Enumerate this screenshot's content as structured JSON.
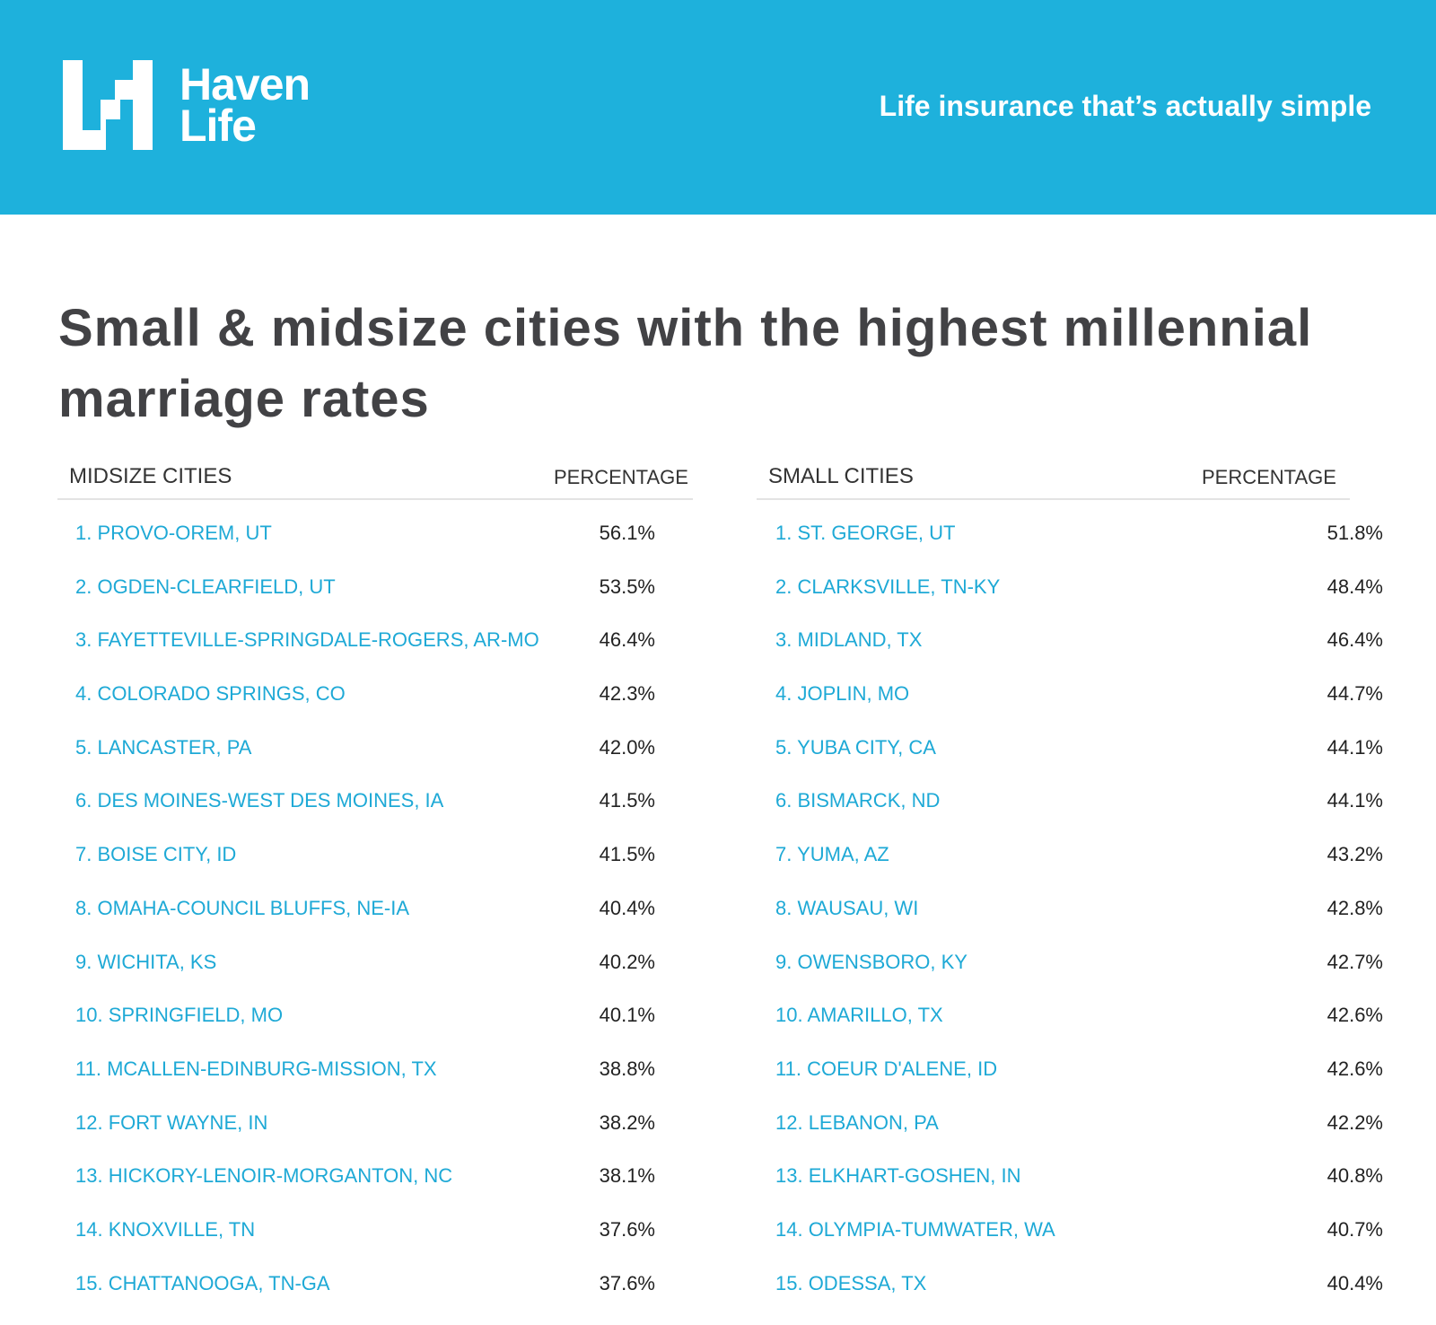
{
  "header": {
    "logo_line1": "Haven",
    "logo_line2": "Life",
    "tagline": "Life insurance that’s actually simple",
    "background_color": "#1eb1dc"
  },
  "title": "Small & midsize cities with the highest millennial marriage rates",
  "tables": {
    "midsize": {
      "heading": "MIDSIZE CITIES",
      "pct_heading": "PERCENTAGE",
      "rows": [
        {
          "city": "1. PROVO-OREM, UT",
          "pct": "56.1%"
        },
        {
          "city": "2. OGDEN-CLEARFIELD, UT",
          "pct": "53.5%"
        },
        {
          "city": "3. FAYETTEVILLE-SPRINGDALE-ROGERS, AR-MO",
          "pct": "46.4%"
        },
        {
          "city": "4. COLORADO SPRINGS, CO",
          "pct": "42.3%"
        },
        {
          "city": "5. LANCASTER, PA",
          "pct": "42.0%"
        },
        {
          "city": "6. DES MOINES-WEST DES MOINES, IA",
          "pct": "41.5%"
        },
        {
          "city": "7. BOISE CITY, ID",
          "pct": "41.5%"
        },
        {
          "city": "8. OMAHA-COUNCIL BLUFFS, NE-IA",
          "pct": "40.4%"
        },
        {
          "city": "9. WICHITA, KS",
          "pct": "40.2%"
        },
        {
          "city": "10. SPRINGFIELD, MO",
          "pct": "40.1%"
        },
        {
          "city": "11. MCALLEN-EDINBURG-MISSION, TX",
          "pct": "38.8%"
        },
        {
          "city": "12. FORT WAYNE, IN",
          "pct": "38.2%"
        },
        {
          "city": "13. HICKORY-LENOIR-MORGANTON, NC",
          "pct": "38.1%"
        },
        {
          "city": "14. KNOXVILLE, TN",
          "pct": "37.6%"
        },
        {
          "city": "15. CHATTANOOGA, TN-GA",
          "pct": "37.6%"
        }
      ]
    },
    "small": {
      "heading": "SMALL CITIES",
      "pct_heading": "PERCENTAGE",
      "rows": [
        {
          "city": "1. ST. GEORGE, UT",
          "pct": "51.8%"
        },
        {
          "city": "2. CLARKSVILLE, TN-KY",
          "pct": "48.4%"
        },
        {
          "city": "3. MIDLAND, TX",
          "pct": "46.4%"
        },
        {
          "city": "4. JOPLIN, MO",
          "pct": "44.7%"
        },
        {
          "city": "5. YUBA CITY, CA",
          "pct": "44.1%"
        },
        {
          "city": "6. BISMARCK, ND",
          "pct": "44.1%"
        },
        {
          "city": "7. YUMA, AZ",
          "pct": "43.2%"
        },
        {
          "city": "8. WAUSAU, WI",
          "pct": "42.8%"
        },
        {
          "city": "9. OWENSBORO, KY",
          "pct": "42.7%"
        },
        {
          "city": "10. AMARILLO, TX",
          "pct": "42.6%"
        },
        {
          "city": "11. COEUR D'ALENE, ID",
          "pct": "42.6%"
        },
        {
          "city": "12. LEBANON, PA",
          "pct": "42.2%"
        },
        {
          "city": "13. ELKHART-GOSHEN, IN",
          "pct": "40.8%"
        },
        {
          "city": "14. OLYMPIA-TUMWATER, WA",
          "pct": "40.7%"
        },
        {
          "city": "15. ODESSA, TX",
          "pct": "40.4%"
        }
      ]
    }
  },
  "colors": {
    "city_text": "#1ea9d6",
    "title_text": "#424245"
  }
}
